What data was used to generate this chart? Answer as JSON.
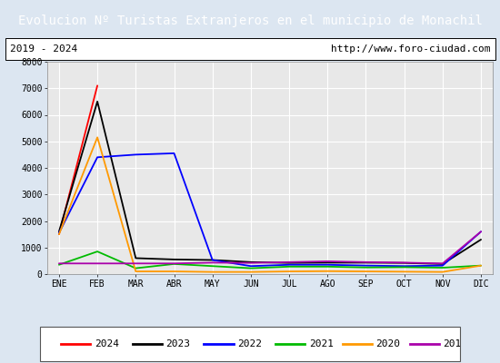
{
  "title": "Evolucion Nº Turistas Extranjeros en el municipio de Monachil",
  "subtitle_left": "2019 - 2024",
  "subtitle_right": "http://www.foro-ciudad.com",
  "months": [
    "ENE",
    "FEB",
    "MAR",
    "ABR",
    "MAY",
    "JUN",
    "JUL",
    "AGO",
    "SEP",
    "OCT",
    "NOV",
    "DIC"
  ],
  "series": {
    "2024": {
      "color": "#ff0000",
      "data": [
        1500,
        7100,
        null,
        null,
        null,
        null,
        null,
        null,
        null,
        null,
        null,
        null
      ]
    },
    "2023": {
      "color": "#000000",
      "data": [
        1600,
        6500,
        600,
        550,
        530,
        450,
        420,
        430,
        430,
        420,
        380,
        1300
      ]
    },
    "2022": {
      "color": "#0000ff",
      "data": [
        1550,
        4400,
        4500,
        4550,
        530,
        300,
        350,
        350,
        320,
        300,
        320,
        1600
      ]
    },
    "2021": {
      "color": "#00bb00",
      "data": [
        350,
        850,
        220,
        380,
        300,
        220,
        280,
        280,
        250,
        260,
        240,
        320
      ]
    },
    "2020": {
      "color": "#ff9900",
      "data": [
        1500,
        5150,
        100,
        100,
        80,
        80,
        100,
        110,
        100,
        90,
        80,
        320
      ]
    },
    "2019": {
      "color": "#aa00aa",
      "data": [
        400,
        400,
        400,
        400,
        430,
        420,
        450,
        480,
        450,
        430,
        400,
        1600
      ]
    }
  },
  "ylim": [
    0,
    8000
  ],
  "yticks": [
    0,
    1000,
    2000,
    3000,
    4000,
    5000,
    6000,
    7000,
    8000
  ],
  "title_bg_color": "#4472c4",
  "title_fg_color": "#ffffff",
  "plot_bg_color": "#e8e8e8",
  "grid_color": "#ffffff",
  "outer_bg_color": "#dce6f1",
  "subtitle_box_color": "#ffffff",
  "title_fontsize": 10,
  "tick_fontsize": 7,
  "legend_fontsize": 8
}
